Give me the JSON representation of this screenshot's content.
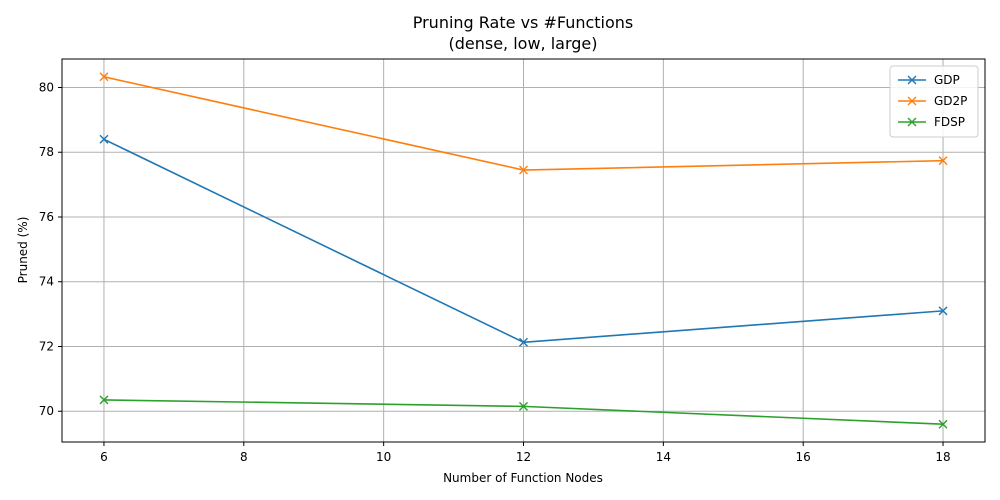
{
  "chart_data": {
    "type": "line",
    "title": "Pruning Rate vs #Functions",
    "subtitle": "(dense, low, large)",
    "xlabel": "Number of Function Nodes",
    "ylabel": "Pruned (%)",
    "x": [
      6,
      12,
      18
    ],
    "xlim": [
      5.4,
      18.6
    ],
    "ylim": [
      69.05,
      80.88
    ],
    "xticks": [
      6,
      8,
      10,
      12,
      14,
      16,
      18
    ],
    "yticks": [
      70,
      72,
      74,
      76,
      78,
      80
    ],
    "grid": true,
    "legend_position": "top-right",
    "marker": "x",
    "series": [
      {
        "name": "GDP",
        "color": "#1f77b4",
        "values": [
          78.4,
          72.13,
          73.1
        ]
      },
      {
        "name": "GD2P",
        "color": "#ff7f0e",
        "values": [
          80.33,
          77.45,
          77.74
        ]
      },
      {
        "name": "FDSP",
        "color": "#2ca02c",
        "values": [
          70.35,
          70.15,
          69.6
        ]
      }
    ]
  }
}
